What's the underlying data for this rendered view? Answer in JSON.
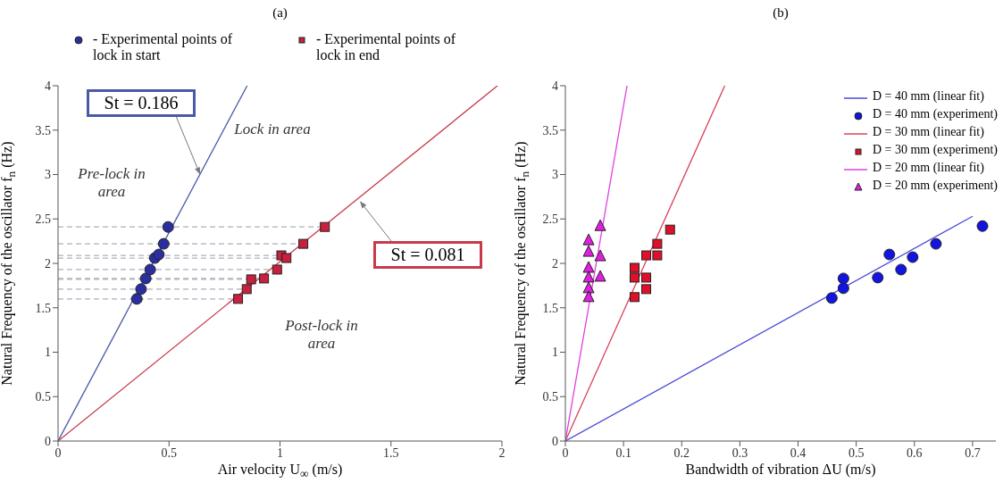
{
  "chart_data": [
    {
      "type": "scatter",
      "title": "(a)",
      "xlabel": "Air velocity U$_{∞}$ (m/s)",
      "ylabel": "Natural Frequency of the oscillator f$_{n}$ (Hz)",
      "xlim": [
        0,
        2
      ],
      "ylim": [
        0,
        4
      ],
      "xticks": [
        0,
        0.5,
        1,
        1.5,
        2
      ],
      "yticks": [
        0,
        0.5,
        1,
        1.5,
        2,
        2.5,
        3,
        3.5,
        4
      ],
      "legend": "top",
      "annotations": [
        {
          "text": "St = 0.186",
          "x": 0.64,
          "y": 3.0
        },
        {
          "text": "St = 0.081",
          "x": 1.36,
          "y": 2.7
        },
        "Lock in area",
        "Pre-lock in area",
        "Post-lock in area"
      ],
      "series": [
        {
          "type": "line",
          "color": "#aab0bc",
          "line_style": "dashed",
          "marker": "none",
          "x": [
            0,
            0.811
          ],
          "values": [
            1.6,
            1.6
          ]
        },
        {
          "type": "line",
          "color": "#aab0bc",
          "line_style": "dashed",
          "marker": "none",
          "x": [
            0,
            0.85
          ],
          "values": [
            1.71,
            1.71
          ]
        },
        {
          "type": "line",
          "color": "#aab0bc",
          "line_style": "dashed",
          "marker": "none",
          "x": [
            0,
            0.87
          ],
          "values": [
            1.82,
            1.82
          ]
        },
        {
          "type": "line",
          "color": "#aab0bc",
          "line_style": "dashed",
          "marker": "none",
          "x": [
            0,
            0.928
          ],
          "values": [
            1.83,
            1.83
          ]
        },
        {
          "type": "line",
          "color": "#aab0bc",
          "line_style": "dashed",
          "marker": "none",
          "x": [
            0,
            0.987
          ],
          "values": [
            1.93,
            1.93
          ]
        },
        {
          "type": "line",
          "color": "#aab0bc",
          "line_style": "dashed",
          "marker": "none",
          "x": [
            0,
            1.029
          ],
          "values": [
            2.06,
            2.06
          ]
        },
        {
          "type": "line",
          "color": "#aab0bc",
          "line_style": "dashed",
          "marker": "none",
          "x": [
            0,
            1.006
          ],
          "values": [
            2.09,
            2.09
          ]
        },
        {
          "type": "line",
          "color": "#aab0bc",
          "line_style": "dashed",
          "marker": "none",
          "x": [
            0,
            1.105
          ],
          "values": [
            2.22,
            2.22
          ]
        },
        {
          "type": "line",
          "color": "#aab0bc",
          "line_style": "dashed",
          "marker": "none",
          "x": [
            0,
            1.202
          ],
          "values": [
            2.41,
            2.41
          ]
        },
        {
          "type": "line",
          "color": "#4a5aa8",
          "line_style": "solid",
          "marker": "none",
          "x": [
            0,
            0.852
          ],
          "values": [
            0,
            4
          ]
        },
        {
          "type": "line",
          "color": "#c83a4a",
          "line_style": "solid",
          "marker": "none",
          "x": [
            0,
            1.98
          ],
          "values": [
            0,
            4
          ]
        },
        {
          "name": "- Experimental points of lock in start",
          "color": "#2b2e9e",
          "marker": "circle",
          "x": [
            0.355,
            0.374,
            0.395,
            0.415,
            0.436,
            0.454,
            0.476,
            0.496
          ],
          "values": [
            1.6,
            1.71,
            1.83,
            1.93,
            2.06,
            2.1,
            2.22,
            2.41
          ]
        },
        {
          "name": "- Experimental points of lock in end",
          "color": "#c8203f",
          "marker": "square",
          "x": [
            0.811,
            0.85,
            0.87,
            0.928,
            0.987,
            1.006,
            1.029,
            1.105,
            1.202
          ],
          "values": [
            1.6,
            1.71,
            1.82,
            1.83,
            1.93,
            2.09,
            2.06,
            2.22,
            2.41
          ]
        }
      ]
    },
    {
      "type": "scatter",
      "title": "(b)",
      "xlabel": "Bandwidth of vibration ΔU (m/s)",
      "ylabel": "Natural Frequency of the oscillator f$_{n}$ (Hz)",
      "xlim": [
        0,
        0.74
      ],
      "ylim": [
        0,
        4
      ],
      "xticks": [
        0,
        0.1,
        0.2,
        0.3,
        0.4,
        0.5,
        0.6,
        0.7
      ],
      "yticks": [
        0,
        0.5,
        1,
        1.5,
        2,
        2.5,
        3,
        3.5,
        4
      ],
      "legend": "top right",
      "series": [
        {
          "type": "line",
          "name": "D = 40 mm (linear fit)",
          "color": "#4a4ad8",
          "line_style": "solid",
          "marker": "none",
          "x": [
            0,
            0.7
          ],
          "values": [
            0,
            2.53
          ]
        },
        {
          "name": "D = 40 mm (experiment)",
          "color": "#1414e0",
          "marker": "circle",
          "x": [
            0.458,
            0.478,
            0.478,
            0.537,
            0.557,
            0.577,
            0.597,
            0.637,
            0.717
          ],
          "values": [
            1.61,
            1.72,
            1.83,
            1.84,
            2.1,
            1.93,
            2.07,
            2.22,
            2.42
          ]
        },
        {
          "type": "line",
          "name": "D = 30 mm (linear fit)",
          "color": "#d8405a",
          "line_style": "solid",
          "marker": "none",
          "x": [
            0,
            0.274
          ],
          "values": [
            0,
            4
          ]
        },
        {
          "name": "D = 30 mm (experiment)",
          "color": "#e0102a",
          "marker": "square",
          "x": [
            0.119,
            0.119,
            0.119,
            0.139,
            0.139,
            0.139,
            0.158,
            0.158,
            0.18
          ],
          "values": [
            1.95,
            1.84,
            1.62,
            2.09,
            1.84,
            1.71,
            2.22,
            2.09,
            2.38
          ]
        },
        {
          "type": "line",
          "name": "D = 20 mm (linear fit)",
          "color": "#e040e0",
          "line_style": "solid",
          "marker": "none",
          "x": [
            0,
            0.106
          ],
          "values": [
            0,
            4
          ]
        },
        {
          "name": "D = 20 mm (experiment)",
          "color": "#e020e0",
          "marker": "triangle",
          "x": [
            0.04,
            0.04,
            0.04,
            0.04,
            0.04,
            0.04,
            0.06,
            0.06,
            0.06
          ],
          "values": [
            2.26,
            2.13,
            1.95,
            1.84,
            1.72,
            1.62,
            2.42,
            2.08,
            1.85
          ]
        }
      ]
    }
  ]
}
